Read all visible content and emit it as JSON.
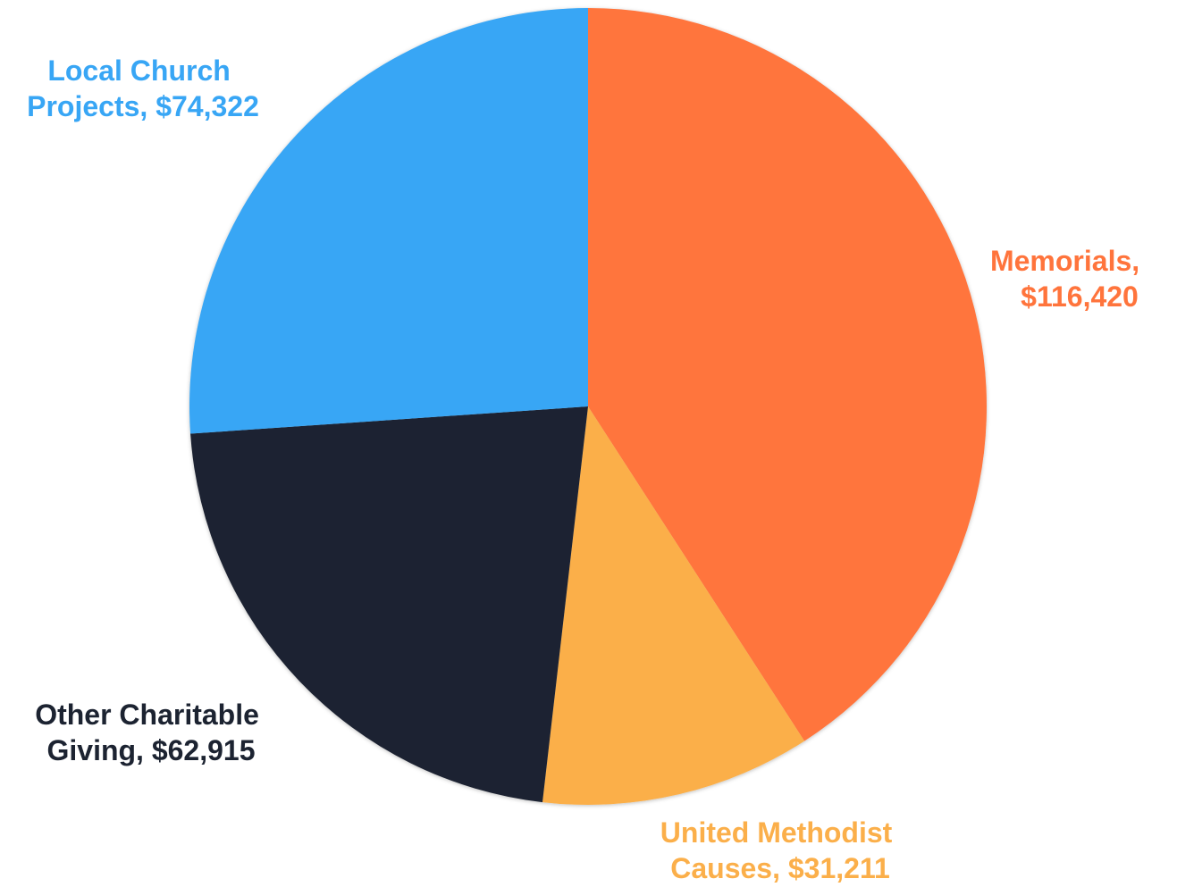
{
  "chart_data": {
    "type": "pie",
    "start_angle": "12 o'clock",
    "direction": "clockwise",
    "legend": "none",
    "slices": [
      {
        "label_line1": "Memorials,",
        "label_line2": "$116,420",
        "value": 116420,
        "color": "#FF743C"
      },
      {
        "label_line1": "United Methodist",
        "label_line2": "Causes, $31,211",
        "value": 31211,
        "color": "#FBAF4A"
      },
      {
        "label_line1": "Other Charitable",
        "label_line2": "Giving, $62,915",
        "value": 62915,
        "color": "#1C2331"
      },
      {
        "label_line1": "Local Church",
        "label_line2": "Projects, $74,322",
        "value": 74322,
        "color": "#38A6F5"
      }
    ]
  }
}
